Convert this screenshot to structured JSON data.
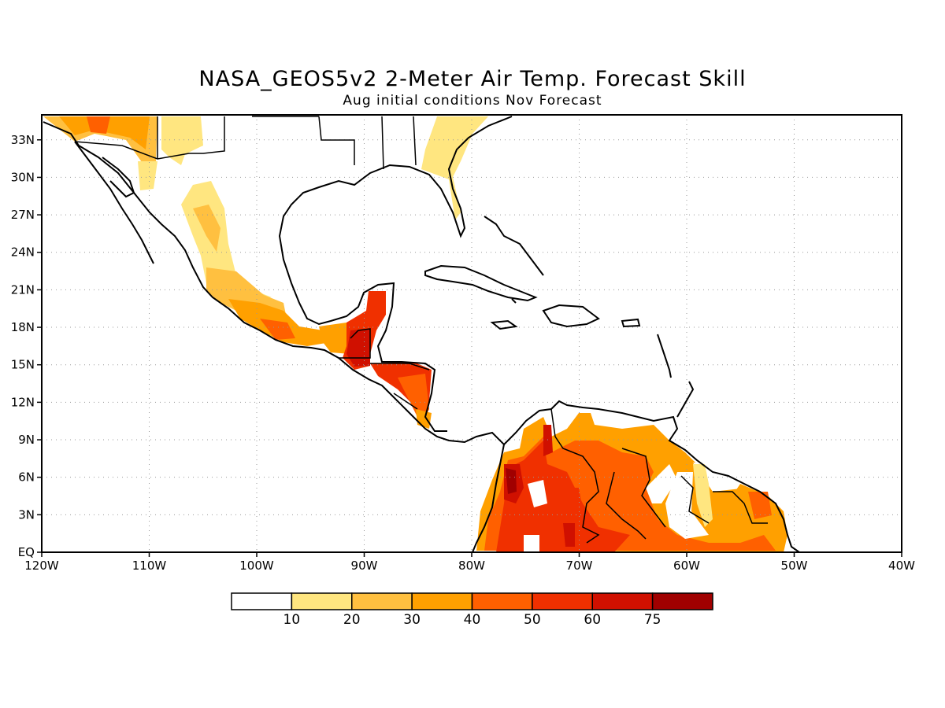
{
  "title": "NASA_GEOS5v2 2-Meter Air Temp. Forecast Skill",
  "subtitle": "Aug initial conditions   Nov Forecast",
  "map": {
    "lon_range": [
      -120,
      -40
    ],
    "lat_range": [
      0,
      35
    ],
    "lon_labels": [
      "120W",
      "110W",
      "100W",
      "90W",
      "80W",
      "70W",
      "60W",
      "50W",
      "40W"
    ],
    "lat_labels": [
      "EQ",
      "3N",
      "6N",
      "9N",
      "12N",
      "15N",
      "18N",
      "21N",
      "24N",
      "27N",
      "30N",
      "33N"
    ],
    "grid": true
  },
  "colorbar": {
    "labels": [
      "10",
      "20",
      "30",
      "40",
      "50",
      "60",
      "75"
    ],
    "colors": [
      "#ffffff",
      "#ffe680",
      "#ffc040",
      "#ffa000",
      "#ff6000",
      "#f03000",
      "#d01000",
      "#a00000"
    ]
  },
  "chart_data": {
    "type": "heatmap",
    "title": "NASA_GEOS5v2 2-Meter Air Temp. Forecast Skill",
    "subtitle": "Aug initial conditions   Nov Forecast",
    "xlim": [
      -120,
      -40
    ],
    "ylim": [
      0,
      35
    ],
    "levels": [
      10,
      20,
      30,
      40,
      50,
      60,
      75
    ],
    "regions": [
      {
        "name": "",
        "level": 30,
        "lon": [
          -116,
          -108
        ],
        "lat": [
          32,
          35
        ]
      },
      {
        "name": "",
        "level": 20,
        "lon": [
          -108,
          -106
        ],
        "lat": [
          32,
          35
        ]
      },
      {
        "name": "",
        "level": 20,
        "lon": [
          -80,
          -74
        ],
        "lat": [
          31,
          35
        ]
      },
      {
        "name": "",
        "level": 10,
        "lon": [
          -106,
          -97
        ],
        "lat": [
          19,
          29
        ]
      },
      {
        "name": "",
        "level": 40,
        "lon": [
          -104,
          -92
        ],
        "lat": [
          17,
          20
        ]
      },
      {
        "name": "",
        "level": 60,
        "lon": [
          -92,
          -88
        ],
        "lat": [
          14,
          21
        ]
      },
      {
        "name": "",
        "level": 60,
        "lon": [
          -89,
          -84
        ],
        "lat": [
          12,
          15
        ]
      },
      {
        "name": "",
        "level": 60,
        "lon": [
          -78,
          -64
        ],
        "lat": [
          0,
          10
        ]
      },
      {
        "name": "",
        "level": 75,
        "lon": [
          -78,
          -76
        ],
        "lat": [
          4,
          7
        ]
      },
      {
        "name": "",
        "level": 40,
        "lon": [
          -64,
          -52
        ],
        "lat": [
          0,
          5
        ]
      }
    ]
  }
}
